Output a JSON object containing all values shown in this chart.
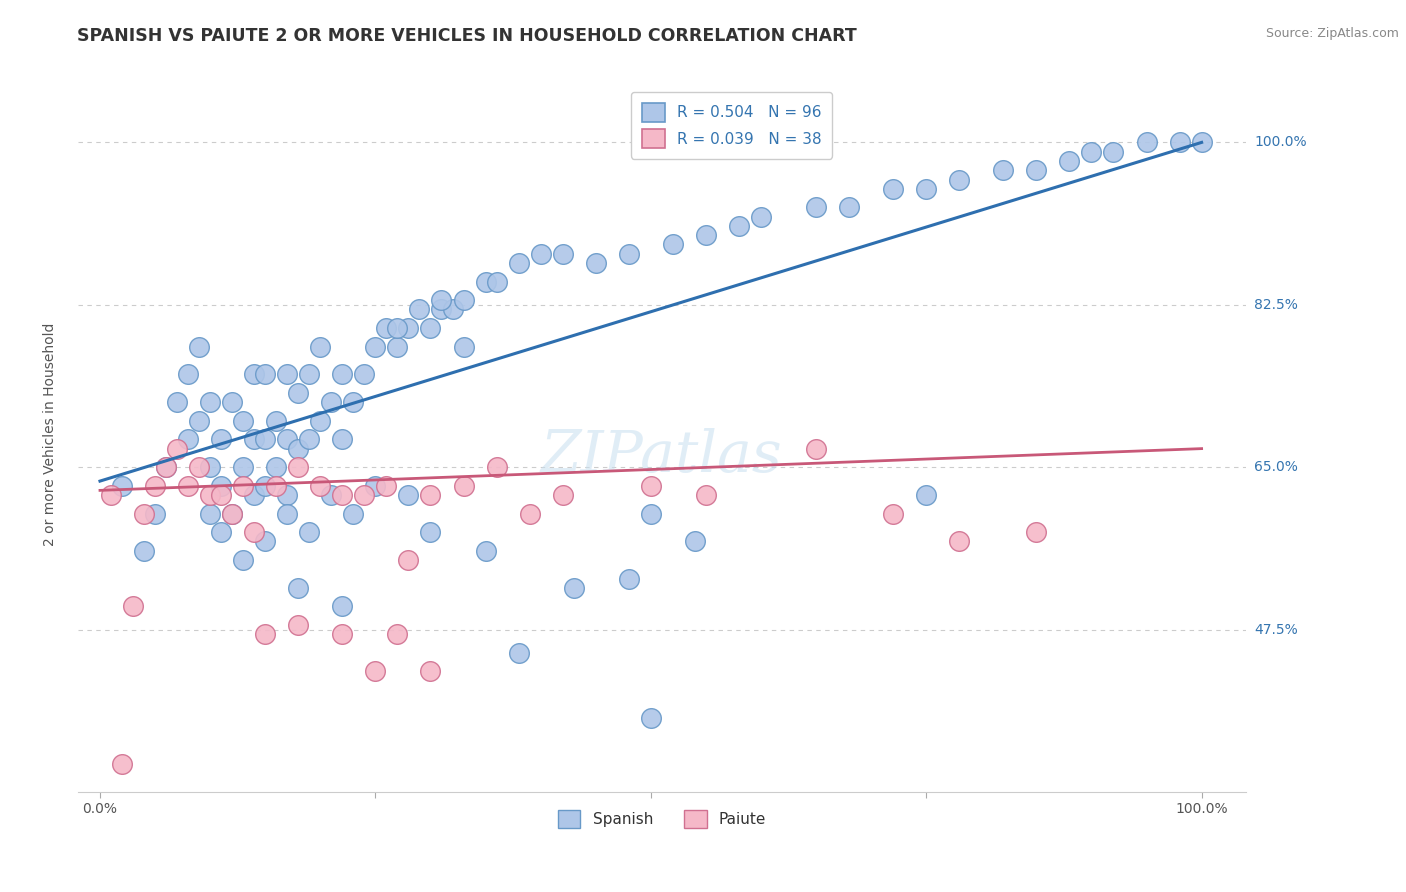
{
  "title": "SPANISH VS PAIUTE 2 OR MORE VEHICLES IN HOUSEHOLD CORRELATION CHART",
  "source_text": "Source: ZipAtlas.com",
  "ylabel": "2 or more Vehicles in Household",
  "watermark": "ZIPatlas",
  "bottom_legend": [
    "Spanish",
    "Paiute"
  ],
  "ytick_labels": [
    "100.0%",
    "82.5%",
    "65.0%",
    "47.5%"
  ],
  "ytick_values": [
    1.0,
    0.825,
    0.65,
    0.475
  ],
  "xlim": [
    -0.02,
    1.04
  ],
  "ylim": [
    0.3,
    1.07
  ],
  "spanish_color": "#aec6e8",
  "spanish_edge": "#6899c8",
  "paiute_color": "#f5b8c8",
  "paiute_edge": "#d07090",
  "regression_blue": "#2e6faf",
  "regression_pink": "#c85878",
  "title_fontsize": 12.5,
  "axis_label_fontsize": 10,
  "tick_fontsize": 10,
  "source_fontsize": 9,
  "watermark_fontsize": 42,
  "blue_line_x": [
    0.0,
    1.0
  ],
  "blue_line_y": [
    0.635,
    1.0
  ],
  "pink_line_x": [
    0.0,
    1.0
  ],
  "pink_line_y": [
    0.625,
    0.67
  ],
  "spanish_x": [
    0.02,
    0.04,
    0.05,
    0.06,
    0.07,
    0.08,
    0.08,
    0.09,
    0.09,
    0.1,
    0.1,
    0.1,
    0.11,
    0.11,
    0.11,
    0.12,
    0.12,
    0.13,
    0.13,
    0.14,
    0.14,
    0.14,
    0.15,
    0.15,
    0.15,
    0.16,
    0.16,
    0.17,
    0.17,
    0.17,
    0.18,
    0.18,
    0.19,
    0.19,
    0.2,
    0.2,
    0.21,
    0.22,
    0.22,
    0.23,
    0.24,
    0.25,
    0.26,
    0.27,
    0.28,
    0.3,
    0.31,
    0.32,
    0.33,
    0.35,
    0.36,
    0.38,
    0.4,
    0.42,
    0.45,
    0.48,
    0.5,
    0.52,
    0.55,
    0.58,
    0.6,
    0.65,
    0.68,
    0.72,
    0.75,
    0.78,
    0.82,
    0.85,
    0.88,
    0.92,
    0.95,
    0.98,
    1.0,
    0.27,
    0.29,
    0.31,
    0.5,
    0.54,
    0.75,
    0.9,
    0.13,
    0.15,
    0.17,
    0.19,
    0.21,
    0.23,
    0.25,
    0.28,
    0.33,
    0.38,
    0.43,
    0.48,
    0.3,
    0.35,
    0.18,
    0.22
  ],
  "spanish_y": [
    0.63,
    0.56,
    0.6,
    0.65,
    0.72,
    0.68,
    0.75,
    0.7,
    0.78,
    0.6,
    0.65,
    0.72,
    0.58,
    0.63,
    0.68,
    0.6,
    0.72,
    0.65,
    0.7,
    0.62,
    0.68,
    0.75,
    0.63,
    0.68,
    0.75,
    0.65,
    0.7,
    0.62,
    0.68,
    0.75,
    0.67,
    0.73,
    0.68,
    0.75,
    0.7,
    0.78,
    0.72,
    0.68,
    0.75,
    0.72,
    0.75,
    0.78,
    0.8,
    0.78,
    0.8,
    0.8,
    0.82,
    0.82,
    0.83,
    0.85,
    0.85,
    0.87,
    0.88,
    0.88,
    0.87,
    0.88,
    0.38,
    0.89,
    0.9,
    0.91,
    0.92,
    0.93,
    0.93,
    0.95,
    0.95,
    0.96,
    0.97,
    0.97,
    0.98,
    0.99,
    1.0,
    1.0,
    1.0,
    0.8,
    0.82,
    0.83,
    0.6,
    0.57,
    0.62,
    0.99,
    0.55,
    0.57,
    0.6,
    0.58,
    0.62,
    0.6,
    0.63,
    0.62,
    0.78,
    0.45,
    0.52,
    0.53,
    0.58,
    0.56,
    0.52,
    0.5
  ],
  "paiute_x": [
    0.01,
    0.02,
    0.03,
    0.04,
    0.05,
    0.06,
    0.07,
    0.08,
    0.09,
    0.1,
    0.11,
    0.12,
    0.13,
    0.14,
    0.16,
    0.18,
    0.2,
    0.22,
    0.24,
    0.26,
    0.28,
    0.3,
    0.33,
    0.36,
    0.39,
    0.42,
    0.5,
    0.55,
    0.65,
    0.72,
    0.78,
    0.85,
    0.25,
    0.3,
    0.15,
    0.18,
    0.22,
    0.27
  ],
  "paiute_y": [
    0.62,
    0.33,
    0.5,
    0.6,
    0.63,
    0.65,
    0.67,
    0.63,
    0.65,
    0.62,
    0.62,
    0.6,
    0.63,
    0.58,
    0.63,
    0.65,
    0.63,
    0.62,
    0.62,
    0.63,
    0.55,
    0.62,
    0.63,
    0.65,
    0.6,
    0.62,
    0.63,
    0.62,
    0.67,
    0.6,
    0.57,
    0.58,
    0.43,
    0.43,
    0.47,
    0.48,
    0.47,
    0.47
  ]
}
